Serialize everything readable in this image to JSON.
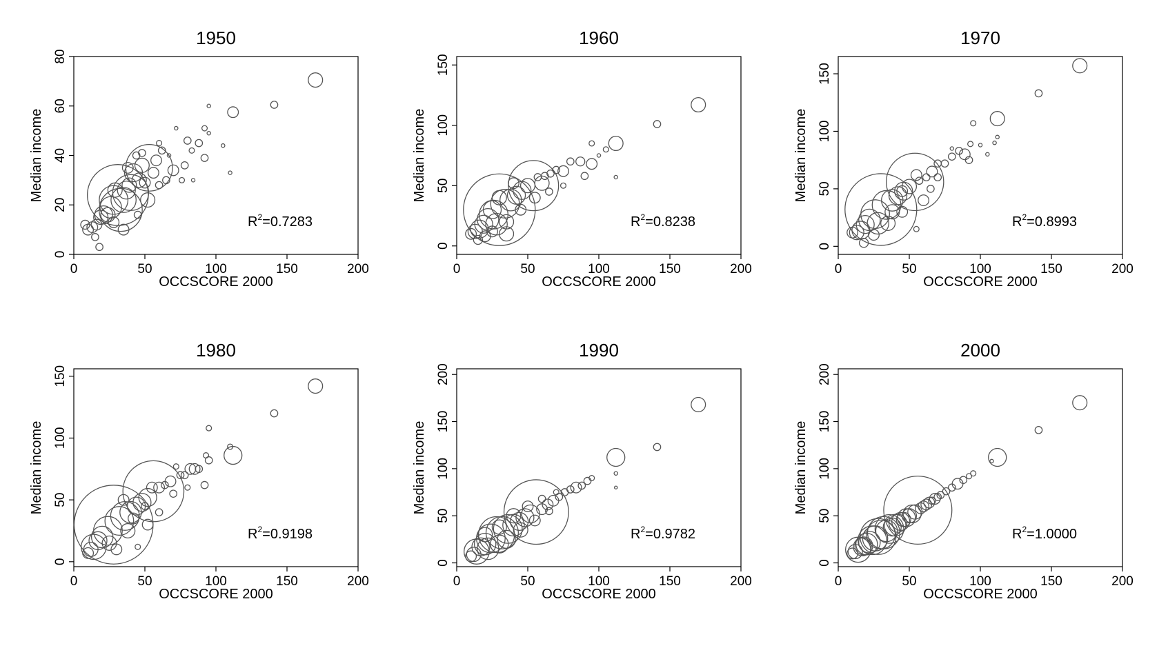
{
  "chart_data": [
    {
      "type": "scatter",
      "title": "1950",
      "xlabel": "OCCSCORE 2000",
      "ylabel": "Median income",
      "xlim": [
        0,
        200
      ],
      "ylim": [
        0,
        80
      ],
      "xticks": [
        0,
        50,
        100,
        150,
        200
      ],
      "yticks": [
        0,
        20,
        40,
        60,
        80
      ],
      "r2_prefix": "R",
      "r2_sup": "2",
      "r2_value": "=0.7283",
      "points": [
        [
          170,
          70.5,
          4
        ],
        [
          112,
          57.5,
          3
        ],
        [
          141,
          60.5,
          2
        ],
        [
          95,
          60,
          1
        ],
        [
          92,
          51,
          1.5
        ],
        [
          95,
          49,
          1
        ],
        [
          88,
          45,
          2
        ],
        [
          80,
          46,
          2
        ],
        [
          83,
          42,
          1.5
        ],
        [
          78,
          36,
          2
        ],
        [
          72,
          51,
          1
        ],
        [
          67,
          40,
          1
        ],
        [
          60,
          45,
          1.5
        ],
        [
          58,
          38,
          3
        ],
        [
          53,
          35,
          13
        ],
        [
          48,
          36,
          4
        ],
        [
          46,
          30,
          4
        ],
        [
          42,
          33,
          5
        ],
        [
          39,
          28,
          4
        ],
        [
          37,
          26,
          5
        ],
        [
          35,
          22,
          7
        ],
        [
          31,
          24,
          17
        ],
        [
          28,
          22,
          8
        ],
        [
          26,
          19,
          6
        ],
        [
          24,
          16,
          4
        ],
        [
          21,
          16,
          5
        ],
        [
          19,
          15,
          4
        ],
        [
          16,
          12,
          3
        ],
        [
          13,
          11,
          3
        ],
        [
          10,
          10,
          3
        ],
        [
          8,
          12,
          2.5
        ],
        [
          15,
          7,
          2
        ],
        [
          18,
          3,
          2
        ],
        [
          28,
          13,
          3
        ],
        [
          35,
          10,
          3
        ],
        [
          45,
          16,
          2
        ],
        [
          52,
          22,
          4
        ],
        [
          60,
          28,
          2
        ],
        [
          65,
          30,
          2
        ],
        [
          70,
          34,
          3
        ],
        [
          76,
          30,
          1.5
        ],
        [
          84,
          30,
          1
        ],
        [
          92,
          39,
          2
        ],
        [
          110,
          33,
          1
        ],
        [
          105,
          44,
          1
        ],
        [
          62,
          42,
          2
        ],
        [
          48,
          41,
          2
        ],
        [
          40,
          25,
          10
        ],
        [
          33,
          18,
          12
        ],
        [
          29,
          26,
          4
        ],
        [
          38,
          35,
          3
        ],
        [
          44,
          40,
          2
        ],
        [
          56,
          33,
          3
        ],
        [
          50,
          29,
          3
        ]
      ]
    },
    {
      "type": "scatter",
      "title": "1960",
      "xlabel": "OCCSCORE 2000",
      "ylabel": "Median income",
      "xlim": [
        0,
        200
      ],
      "ylim": [
        -7,
        157
      ],
      "xticks": [
        0,
        50,
        100,
        150,
        200
      ],
      "yticks": [
        0,
        50,
        100,
        150
      ],
      "r2_prefix": "R",
      "r2_sup": "2",
      "r2_value": "=0.8238",
      "points": [
        [
          170,
          117,
          4
        ],
        [
          141,
          101,
          2
        ],
        [
          112,
          85,
          4
        ],
        [
          112,
          57,
          1
        ],
        [
          95,
          85,
          1.5
        ],
        [
          90,
          58,
          2
        ],
        [
          95,
          68,
          3
        ],
        [
          87,
          70,
          2.5
        ],
        [
          80,
          70,
          2
        ],
        [
          75,
          62,
          3
        ],
        [
          70,
          63,
          2
        ],
        [
          66,
          60,
          2
        ],
        [
          62,
          58,
          2
        ],
        [
          57,
          57,
          2
        ],
        [
          54,
          50,
          14
        ],
        [
          50,
          50,
          4
        ],
        [
          46,
          46,
          5
        ],
        [
          42,
          42,
          5
        ],
        [
          38,
          38,
          6
        ],
        [
          34,
          35,
          8
        ],
        [
          30,
          30,
          20
        ],
        [
          26,
          26,
          8
        ],
        [
          22,
          22,
          6
        ],
        [
          19,
          18,
          5
        ],
        [
          16,
          14,
          5
        ],
        [
          13,
          12,
          4
        ],
        [
          10,
          10,
          3
        ],
        [
          15,
          5,
          2.5
        ],
        [
          20,
          8,
          3
        ],
        [
          25,
          12,
          3
        ],
        [
          35,
          20,
          4
        ],
        [
          45,
          30,
          3
        ],
        [
          55,
          40,
          3
        ],
        [
          65,
          45,
          2
        ],
        [
          75,
          50,
          1.5
        ],
        [
          100,
          75,
          1
        ],
        [
          105,
          80,
          1.5
        ],
        [
          25,
          30,
          5
        ],
        [
          30,
          40,
          4
        ],
        [
          40,
          52,
          3
        ],
        [
          60,
          52,
          4
        ],
        [
          35,
          10,
          4
        ],
        [
          28,
          18,
          6
        ]
      ]
    },
    {
      "type": "scatter",
      "title": "1970",
      "xlabel": "OCCSCORE 2000",
      "ylabel": "Median income",
      "xlim": [
        0,
        200
      ],
      "ylim": [
        -7,
        165
      ],
      "xticks": [
        0,
        50,
        100,
        150,
        200
      ],
      "yticks": [
        0,
        50,
        100,
        150
      ],
      "r2_prefix": "R",
      "r2_sup": "2",
      "r2_value": "=0.8993",
      "points": [
        [
          170,
          157,
          4
        ],
        [
          141,
          133,
          2
        ],
        [
          112,
          111,
          4
        ],
        [
          112,
          95,
          1
        ],
        [
          110,
          90,
          1
        ],
        [
          95,
          107,
          1.5
        ],
        [
          93,
          89,
          1.5
        ],
        [
          92,
          75,
          2
        ],
        [
          89,
          80,
          3
        ],
        [
          85,
          83,
          2
        ],
        [
          80,
          78,
          2
        ],
        [
          75,
          72,
          2
        ],
        [
          70,
          72,
          2
        ],
        [
          66,
          65,
          3
        ],
        [
          62,
          60,
          2
        ],
        [
          57,
          57,
          2
        ],
        [
          54,
          56,
          16
        ],
        [
          50,
          52,
          4
        ],
        [
          46,
          48,
          5
        ],
        [
          42,
          44,
          5
        ],
        [
          38,
          40,
          6
        ],
        [
          34,
          36,
          8
        ],
        [
          30,
          32,
          20
        ],
        [
          26,
          28,
          8
        ],
        [
          22,
          23,
          6
        ],
        [
          19,
          19,
          5
        ],
        [
          16,
          14,
          5
        ],
        [
          13,
          12,
          4
        ],
        [
          10,
          12,
          3
        ],
        [
          18,
          3,
          2.5
        ],
        [
          25,
          10,
          3
        ],
        [
          35,
          20,
          4
        ],
        [
          45,
          30,
          3
        ],
        [
          55,
          15,
          1.5
        ],
        [
          60,
          40,
          3
        ],
        [
          65,
          50,
          2
        ],
        [
          70,
          60,
          2
        ],
        [
          80,
          85,
          1
        ],
        [
          100,
          88,
          1
        ],
        [
          105,
          80,
          1
        ],
        [
          45,
          48,
          3
        ],
        [
          38,
          30,
          4
        ],
        [
          28,
          20,
          6
        ],
        [
          55,
          62,
          3
        ]
      ]
    },
    {
      "type": "scatter",
      "title": "1980",
      "xlabel": "OCCSCORE 2000",
      "ylabel": "Median income",
      "xlim": [
        0,
        200
      ],
      "ylim": [
        -4,
        156
      ],
      "xticks": [
        0,
        50,
        100,
        150,
        200
      ],
      "yticks": [
        0,
        50,
        100,
        150
      ],
      "r2_prefix": "R",
      "r2_sup": "2",
      "r2_value": "=0.9198",
      "points": [
        [
          170,
          142,
          4
        ],
        [
          141,
          120,
          2
        ],
        [
          112,
          86,
          5
        ],
        [
          110,
          93,
          1.5
        ],
        [
          95,
          108,
          1.5
        ],
        [
          93,
          86,
          1.5
        ],
        [
          95,
          82,
          2
        ],
        [
          92,
          62,
          2
        ],
        [
          88,
          75,
          2
        ],
        [
          85,
          75,
          3
        ],
        [
          82,
          75,
          3
        ],
        [
          78,
          70,
          2
        ],
        [
          75,
          70,
          2
        ],
        [
          72,
          77,
          1.5
        ],
        [
          68,
          65,
          3
        ],
        [
          64,
          62,
          2
        ],
        [
          60,
          60,
          3
        ],
        [
          56,
          57,
          17
        ],
        [
          52,
          52,
          5
        ],
        [
          48,
          48,
          5
        ],
        [
          44,
          45,
          5
        ],
        [
          40,
          40,
          6
        ],
        [
          36,
          37,
          8
        ],
        [
          32,
          33,
          8
        ],
        [
          28,
          30,
          22
        ],
        [
          24,
          25,
          8
        ],
        [
          20,
          20,
          6
        ],
        [
          17,
          17,
          5
        ],
        [
          14,
          12,
          7
        ],
        [
          12,
          10,
          4
        ],
        [
          10,
          7,
          3
        ],
        [
          45,
          12,
          1.5
        ],
        [
          52,
          30,
          3
        ],
        [
          60,
          40,
          2
        ],
        [
          70,
          55,
          2
        ],
        [
          80,
          60,
          1.5
        ],
        [
          30,
          10,
          3
        ],
        [
          25,
          15,
          4
        ],
        [
          38,
          25,
          4
        ],
        [
          42,
          35,
          3
        ],
        [
          50,
          45,
          2
        ],
        [
          55,
          60,
          3
        ],
        [
          35,
          50,
          3
        ]
      ]
    },
    {
      "type": "scatter",
      "title": "1990",
      "xlabel": "OCCSCORE 2000",
      "ylabel": "Median income",
      "xlim": [
        0,
        200
      ],
      "ylim": [
        -4,
        206
      ],
      "xticks": [
        0,
        50,
        100,
        150,
        200
      ],
      "yticks": [
        0,
        50,
        100,
        150,
        200
      ],
      "r2_prefix": "R",
      "r2_sup": "2",
      "r2_value": "=0.9782",
      "points": [
        [
          170,
          168,
          4
        ],
        [
          141,
          123,
          2
        ],
        [
          112,
          112,
          5
        ],
        [
          112,
          95,
          1
        ],
        [
          112,
          80,
          0.8
        ],
        [
          95,
          90,
          1.5
        ],
        [
          92,
          87,
          2
        ],
        [
          88,
          82,
          2
        ],
        [
          84,
          80,
          3
        ],
        [
          80,
          78,
          2
        ],
        [
          76,
          75,
          2
        ],
        [
          72,
          70,
          2
        ],
        [
          68,
          66,
          3
        ],
        [
          64,
          62,
          3
        ],
        [
          60,
          57,
          3
        ],
        [
          56,
          54,
          18
        ],
        [
          52,
          52,
          5
        ],
        [
          48,
          48,
          5
        ],
        [
          44,
          44,
          5
        ],
        [
          40,
          40,
          6
        ],
        [
          36,
          36,
          8
        ],
        [
          32,
          32,
          9
        ],
        [
          28,
          30,
          10
        ],
        [
          24,
          26,
          8
        ],
        [
          20,
          20,
          6
        ],
        [
          17,
          17,
          5
        ],
        [
          14,
          12,
          7
        ],
        [
          12,
          9,
          4
        ],
        [
          10,
          7,
          3
        ],
        [
          20,
          30,
          4
        ],
        [
          30,
          38,
          4
        ],
        [
          40,
          50,
          4
        ],
        [
          50,
          60,
          3
        ],
        [
          60,
          68,
          2
        ],
        [
          70,
          75,
          1.5
        ],
        [
          22,
          15,
          6
        ],
        [
          30,
          20,
          5
        ],
        [
          45,
          35,
          4
        ],
        [
          55,
          45,
          3
        ],
        [
          65,
          55,
          2
        ],
        [
          35,
          25,
          5
        ]
      ]
    },
    {
      "type": "scatter",
      "title": "2000",
      "xlabel": "OCCSCORE 2000",
      "ylabel": "Median income",
      "xlim": [
        0,
        200
      ],
      "ylim": [
        -4,
        206
      ],
      "xticks": [
        0,
        50,
        100,
        150,
        200
      ],
      "yticks": [
        0,
        50,
        100,
        150,
        200
      ],
      "r2_prefix": "R",
      "r2_sup": "2",
      "r2_value": "=1.0000",
      "points": [
        [
          170,
          170,
          4
        ],
        [
          141,
          141,
          2
        ],
        [
          112,
          112,
          5
        ],
        [
          108,
          108,
          1
        ],
        [
          95,
          95,
          1.5
        ],
        [
          92,
          92,
          1.5
        ],
        [
          88,
          88,
          2
        ],
        [
          84,
          84,
          3
        ],
        [
          80,
          80,
          2
        ],
        [
          76,
          76,
          2
        ],
        [
          72,
          72,
          2
        ],
        [
          68,
          68,
          3
        ],
        [
          64,
          64,
          3
        ],
        [
          60,
          60,
          3
        ],
        [
          56,
          56,
          19
        ],
        [
          52,
          52,
          5
        ],
        [
          48,
          48,
          5
        ],
        [
          44,
          44,
          5
        ],
        [
          40,
          40,
          6
        ],
        [
          36,
          36,
          8
        ],
        [
          32,
          32,
          9
        ],
        [
          28,
          28,
          10
        ],
        [
          24,
          24,
          8
        ],
        [
          20,
          20,
          6
        ],
        [
          17,
          17,
          5
        ],
        [
          14,
          14,
          7
        ],
        [
          12,
          12,
          4
        ],
        [
          10,
          10,
          3
        ],
        [
          18,
          18,
          5
        ],
        [
          22,
          22,
          6
        ],
        [
          26,
          26,
          7
        ],
        [
          30,
          30,
          8
        ],
        [
          34,
          34,
          6
        ],
        [
          38,
          38,
          5
        ],
        [
          42,
          42,
          5
        ],
        [
          46,
          46,
          4
        ],
        [
          50,
          50,
          4
        ],
        [
          54,
          54,
          4
        ],
        [
          58,
          58,
          3
        ],
        [
          62,
          62,
          3
        ],
        [
          66,
          66,
          2
        ],
        [
          70,
          70,
          2
        ]
      ]
    }
  ]
}
